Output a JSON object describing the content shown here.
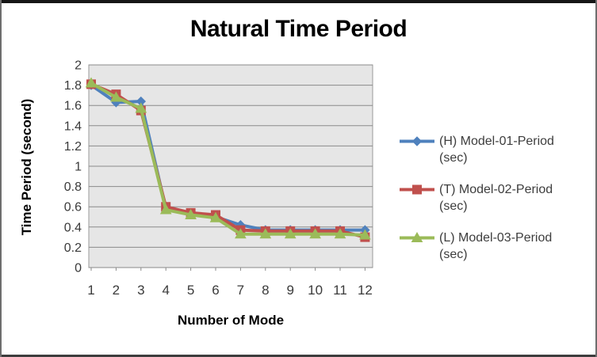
{
  "chart_data": {
    "type": "line",
    "title": "Natural Time Period",
    "xlabel": "Number of Mode",
    "ylabel": "Time Period (second)",
    "categories": [
      1,
      2,
      3,
      4,
      5,
      6,
      7,
      8,
      9,
      10,
      11,
      12
    ],
    "y_tick_labels": [
      "2",
      "1.8",
      "1.6",
      "1.4",
      "1.2",
      "1",
      "0.8",
      "0.6",
      "0.4",
      "0.2",
      "0"
    ],
    "ylim": [
      0,
      2
    ],
    "y_step": 0.2,
    "grid": "horizontal",
    "legend_position": "right",
    "plot_bg_color": "#E6E6E6",
    "gridline_color": "#8A8A8A",
    "axis_text_color": "#3A3A3A",
    "series": [
      {
        "name": "(H) Model-01-Period (sec)",
        "color": "#4F81BD",
        "marker": "diamond",
        "values": [
          1.8,
          1.63,
          1.64,
          0.58,
          0.53,
          0.5,
          0.42,
          0.37,
          0.37,
          0.37,
          0.37,
          0.37
        ]
      },
      {
        "name": "(T) Model-02-Period (sec)",
        "color": "#C0504D",
        "marker": "square",
        "values": [
          1.81,
          1.71,
          1.55,
          0.6,
          0.54,
          0.52,
          0.37,
          0.36,
          0.36,
          0.36,
          0.36,
          0.3
        ]
      },
      {
        "name": "(L) Model-03-Period (sec)",
        "color": "#9BBB59",
        "marker": "triangle",
        "values": [
          1.82,
          1.68,
          1.57,
          0.57,
          0.52,
          0.49,
          0.33,
          0.33,
          0.33,
          0.33,
          0.33,
          0.32
        ]
      }
    ]
  }
}
